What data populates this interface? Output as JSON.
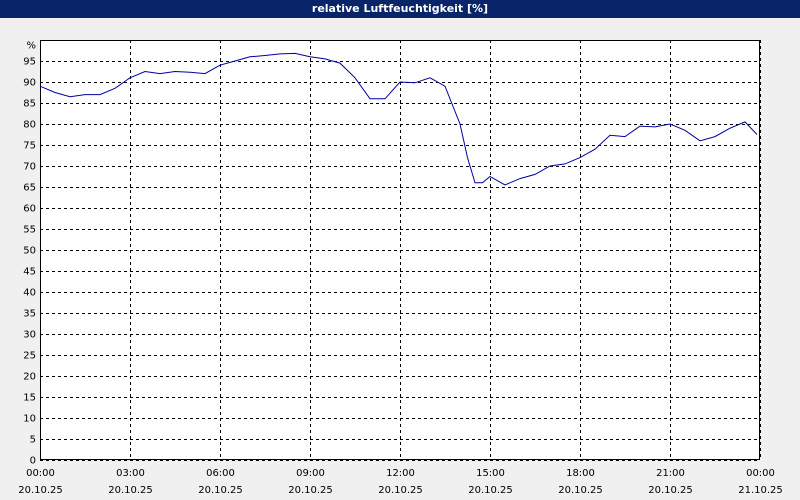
{
  "chart_data": {
    "type": "line",
    "title": "relative Luftfeuchtigkeit [%]",
    "x": [
      0,
      0.5,
      1,
      1.5,
      2,
      2.5,
      3,
      3.5,
      4,
      4.5,
      5,
      5.5,
      6,
      6.5,
      7,
      7.5,
      8,
      8.5,
      9,
      9.5,
      10,
      10.5,
      11,
      11.5,
      12,
      12.5,
      13,
      13.5,
      14,
      14.25,
      14.5,
      14.75,
      15,
      15.5,
      16,
      16.5,
      17,
      17.5,
      18,
      18.5,
      19,
      19.5,
      20,
      20.5,
      21,
      21.5,
      22,
      22.5,
      23,
      23.5,
      23.9
    ],
    "series": [
      {
        "color": "#0000a0",
        "values": [
          89,
          87.5,
          86.5,
          87,
          87,
          88.5,
          91,
          92.5,
          92,
          92.5,
          92.3,
          92,
          94,
          95,
          96,
          96.3,
          96.7,
          96.8,
          96,
          95.5,
          94.5,
          91,
          86,
          86,
          90,
          89.8,
          91,
          89,
          80,
          72,
          66,
          66,
          67.5,
          65.5,
          67,
          68,
          70,
          70.5,
          72,
          74,
          77.3,
          77,
          79.5,
          79.3,
          80,
          78.5,
          76,
          77,
          79,
          80.5,
          77.5
        ]
      }
    ],
    "xlim": [
      0,
      24
    ],
    "xticks": [
      {
        "value": 0,
        "label": "00:00",
        "date": "20.10.25"
      },
      {
        "value": 3,
        "label": "03:00",
        "date": "20.10.25"
      },
      {
        "value": 6,
        "label": "06:00",
        "date": "20.10.25"
      },
      {
        "value": 9,
        "label": "09:00",
        "date": "20.10.25"
      },
      {
        "value": 12,
        "label": "12:00",
        "date": "20.10.25"
      },
      {
        "value": 15,
        "label": "15:00",
        "date": "20.10.25"
      },
      {
        "value": 18,
        "label": "18:00",
        "date": "20.10.25"
      },
      {
        "value": 21,
        "label": "21:00",
        "date": "20.10.25"
      },
      {
        "value": 24,
        "label": "00:00",
        "date": "21.10.25"
      }
    ],
    "ylim": [
      0,
      100
    ],
    "yticks": [
      0,
      5,
      10,
      15,
      20,
      25,
      30,
      35,
      40,
      45,
      50,
      55,
      60,
      65,
      70,
      75,
      80,
      85,
      90,
      95,
      {
        "value": 100,
        "label": "%"
      }
    ],
    "grid": true
  }
}
